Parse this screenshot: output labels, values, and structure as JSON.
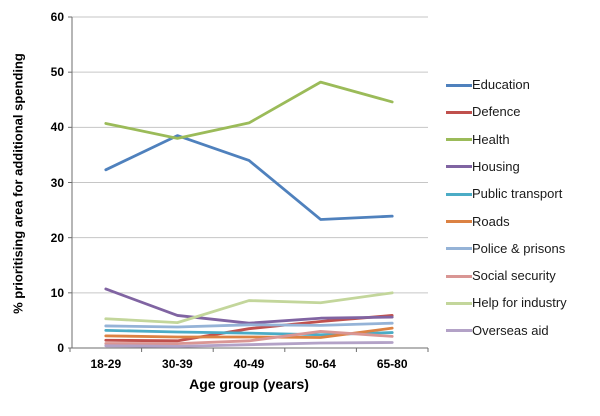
{
  "chart_data": {
    "type": "line",
    "title": "",
    "xlabel": "Age group (years)",
    "ylabel": "% prioritising area for additional spending",
    "categories": [
      "18-29",
      "30-39",
      "40-49",
      "50-64",
      "65-80"
    ],
    "ylim": [
      0,
      60
    ],
    "yticks": [
      0,
      10,
      20,
      30,
      40,
      50,
      60
    ],
    "grid": "horizontal",
    "legend_position": "right",
    "series": [
      {
        "name": "Education",
        "color": "#4F81BD",
        "values": [
          32.3,
          38.5,
          34.0,
          23.3,
          23.9
        ]
      },
      {
        "name": "Defence",
        "color": "#C0504D",
        "values": [
          1.4,
          1.3,
          3.5,
          4.8,
          5.9
        ]
      },
      {
        "name": "Health",
        "color": "#9BBB59",
        "values": [
          40.7,
          38.0,
          40.8,
          48.2,
          44.6
        ]
      },
      {
        "name": "Housing",
        "color": "#8064A2",
        "values": [
          10.7,
          5.9,
          4.5,
          5.4,
          5.6
        ]
      },
      {
        "name": "Public transport",
        "color": "#4BACC6",
        "values": [
          3.2,
          2.9,
          2.7,
          2.4,
          2.8
        ]
      },
      {
        "name": "Roads",
        "color": "#DC8243",
        "values": [
          2.2,
          2.0,
          2.0,
          1.9,
          3.6
        ]
      },
      {
        "name": "Police & prisons",
        "color": "#95B3D7",
        "values": [
          4.0,
          3.8,
          4.2,
          4.1,
          4.5
        ]
      },
      {
        "name": "Social security",
        "color": "#D99694",
        "values": [
          0.8,
          0.8,
          1.3,
          3.0,
          2.1
        ]
      },
      {
        "name": "Help for industry",
        "color": "#C3D69B",
        "values": [
          5.3,
          4.6,
          8.6,
          8.2,
          10.0
        ]
      },
      {
        "name": "Overseas aid",
        "color": "#B3A2C7",
        "values": [
          0.4,
          0.3,
          0.6,
          0.9,
          1.0
        ]
      }
    ],
    "axis_color": "#6e6e6e",
    "gridline_color": "#c6c6c6"
  }
}
